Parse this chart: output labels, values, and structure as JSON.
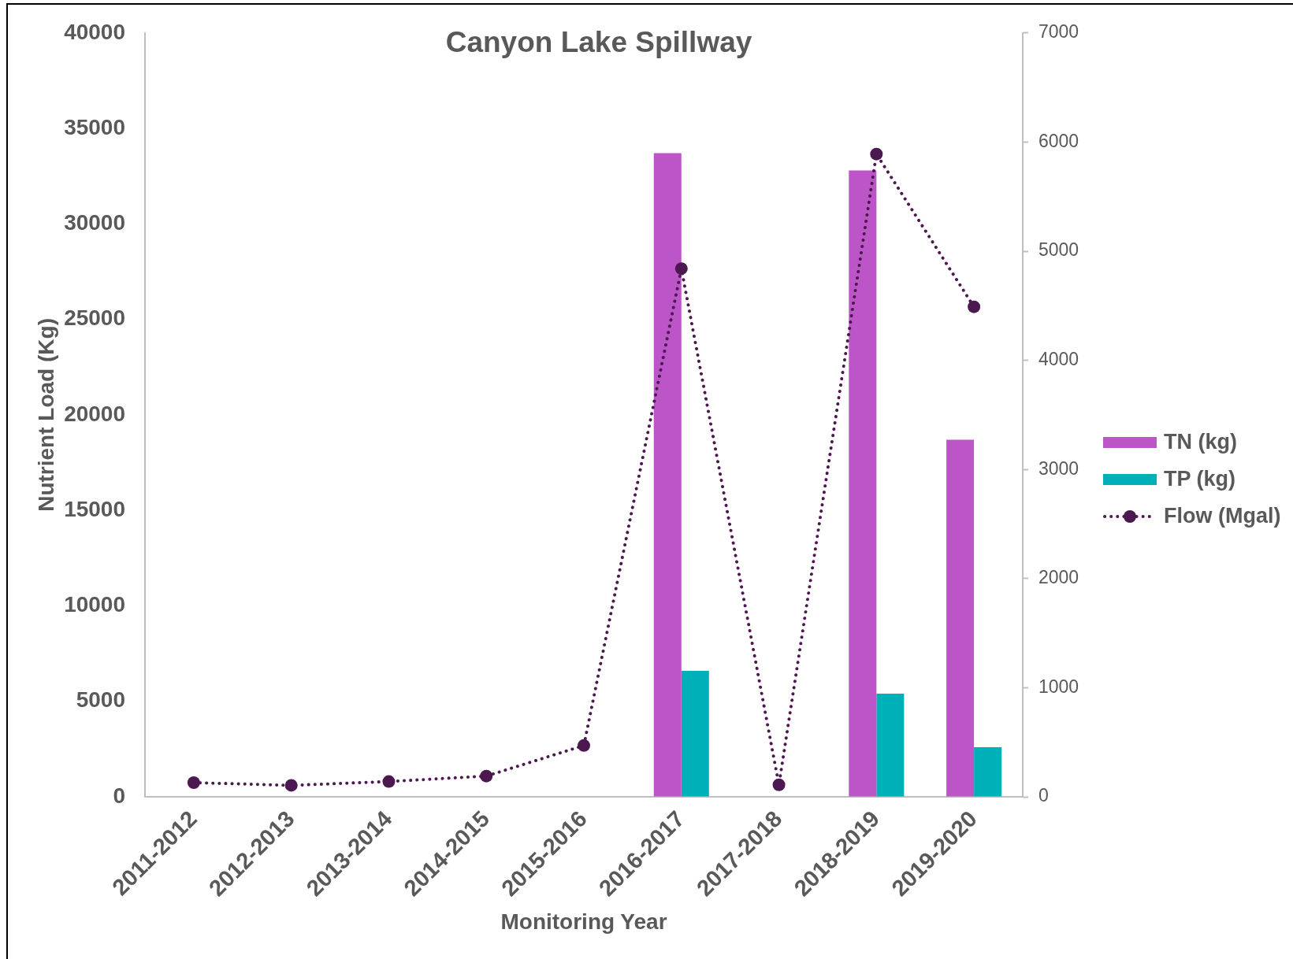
{
  "chart_data": {
    "type": "bar",
    "title": "Canyon Lake Spillway",
    "xlabel": "Monitoring Year",
    "ylabel": "Nutrient Load (Kg)",
    "categories": [
      "2011-2012",
      "2012-2013",
      "2013-2014",
      "2014-2015",
      "2015-2016",
      "2016-2017",
      "2017-2018",
      "2018-2019",
      "2019-2020"
    ],
    "series": [
      {
        "name": "TN (kg)",
        "color": "#bc55c8",
        "values": [
          null,
          null,
          null,
          null,
          null,
          33700,
          null,
          32800,
          18700
        ]
      },
      {
        "name": "TP (kg)",
        "color": "#00b0b9",
        "values": [
          null,
          null,
          null,
          null,
          null,
          6600,
          null,
          5400,
          2600
        ]
      },
      {
        "name": "Flow (Mgal)",
        "type": "line",
        "axis": "y2",
        "color": "#4b1850",
        "values": [
          130,
          105,
          140,
          190,
          470,
          4840,
          110,
          5890,
          4490
        ]
      }
    ],
    "ylim": [
      0,
      40000
    ],
    "yticks": [
      0,
      5000,
      10000,
      15000,
      20000,
      25000,
      30000,
      35000,
      40000
    ],
    "y2lim": [
      0,
      7000
    ],
    "y2ticks": [
      0,
      1000,
      2000,
      3000,
      4000,
      5000,
      6000,
      7000
    ],
    "grid": false,
    "legend": "right",
    "marker": "circle",
    "line_style": "dotted"
  }
}
